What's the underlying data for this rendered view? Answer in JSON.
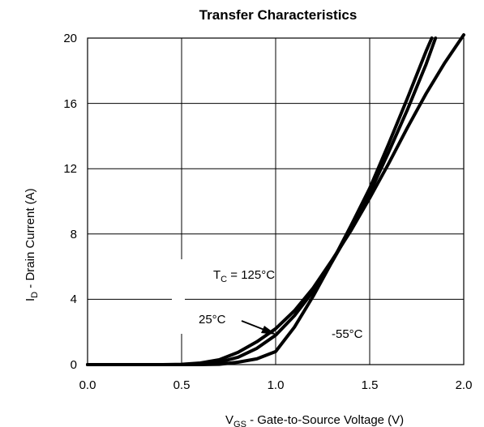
{
  "chart_data": {
    "type": "line",
    "title": "Transfer Characteristics",
    "xlabel": {
      "main": "V",
      "sub": "GS",
      "rest": " -  Gate-to-Source Voltage (V)"
    },
    "ylabel": {
      "main": "I",
      "sub": "D",
      "rest": "  -  Drain Current (A)"
    },
    "xlim": [
      0.0,
      2.0
    ],
    "ylim": [
      0,
      20
    ],
    "xticks": [
      "0.0",
      "0.5",
      "1.0",
      "1.5",
      "2.0"
    ],
    "yticks": [
      "0",
      "4",
      "8",
      "12",
      "16",
      "20"
    ],
    "grid": true,
    "annotations": {
      "tc_main": "T",
      "tc_sub": "C",
      "tc_rest": " = 125°C",
      "t25": "25°C",
      "tm55": "-55°C"
    },
    "series": [
      {
        "name": "125°C",
        "x": [
          0.0,
          0.4,
          0.5,
          0.6,
          0.7,
          0.8,
          0.9,
          1.0,
          1.1,
          1.2,
          1.3,
          1.4,
          1.5,
          1.6,
          1.7,
          1.8,
          1.9,
          2.0
        ],
        "y": [
          0.0,
          0.0,
          0.02,
          0.1,
          0.3,
          0.75,
          1.4,
          2.2,
          3.3,
          4.7,
          6.4,
          8.2,
          10.2,
          12.3,
          14.5,
          16.6,
          18.5,
          20.2
        ]
      },
      {
        "name": "25°C",
        "x": [
          0.0,
          0.5,
          0.6,
          0.7,
          0.8,
          0.9,
          1.0,
          1.1,
          1.2,
          1.3,
          1.4,
          1.5,
          1.6,
          1.7,
          1.8,
          1.85
        ],
        "y": [
          0.0,
          0.0,
          0.03,
          0.15,
          0.45,
          1.0,
          1.8,
          3.0,
          4.5,
          6.3,
          8.3,
          10.5,
          13.0,
          15.6,
          18.4,
          20.0
        ]
      },
      {
        "name": "-55°C",
        "x": [
          0.0,
          0.6,
          0.7,
          0.8,
          0.9,
          1.0,
          1.1,
          1.2,
          1.3,
          1.4,
          1.5,
          1.6,
          1.7,
          1.8,
          1.83
        ],
        "y": [
          0.0,
          0.0,
          0.02,
          0.15,
          0.35,
          0.8,
          2.3,
          4.2,
          6.3,
          8.5,
          10.8,
          13.5,
          16.3,
          19.2,
          20.0
        ]
      }
    ]
  }
}
